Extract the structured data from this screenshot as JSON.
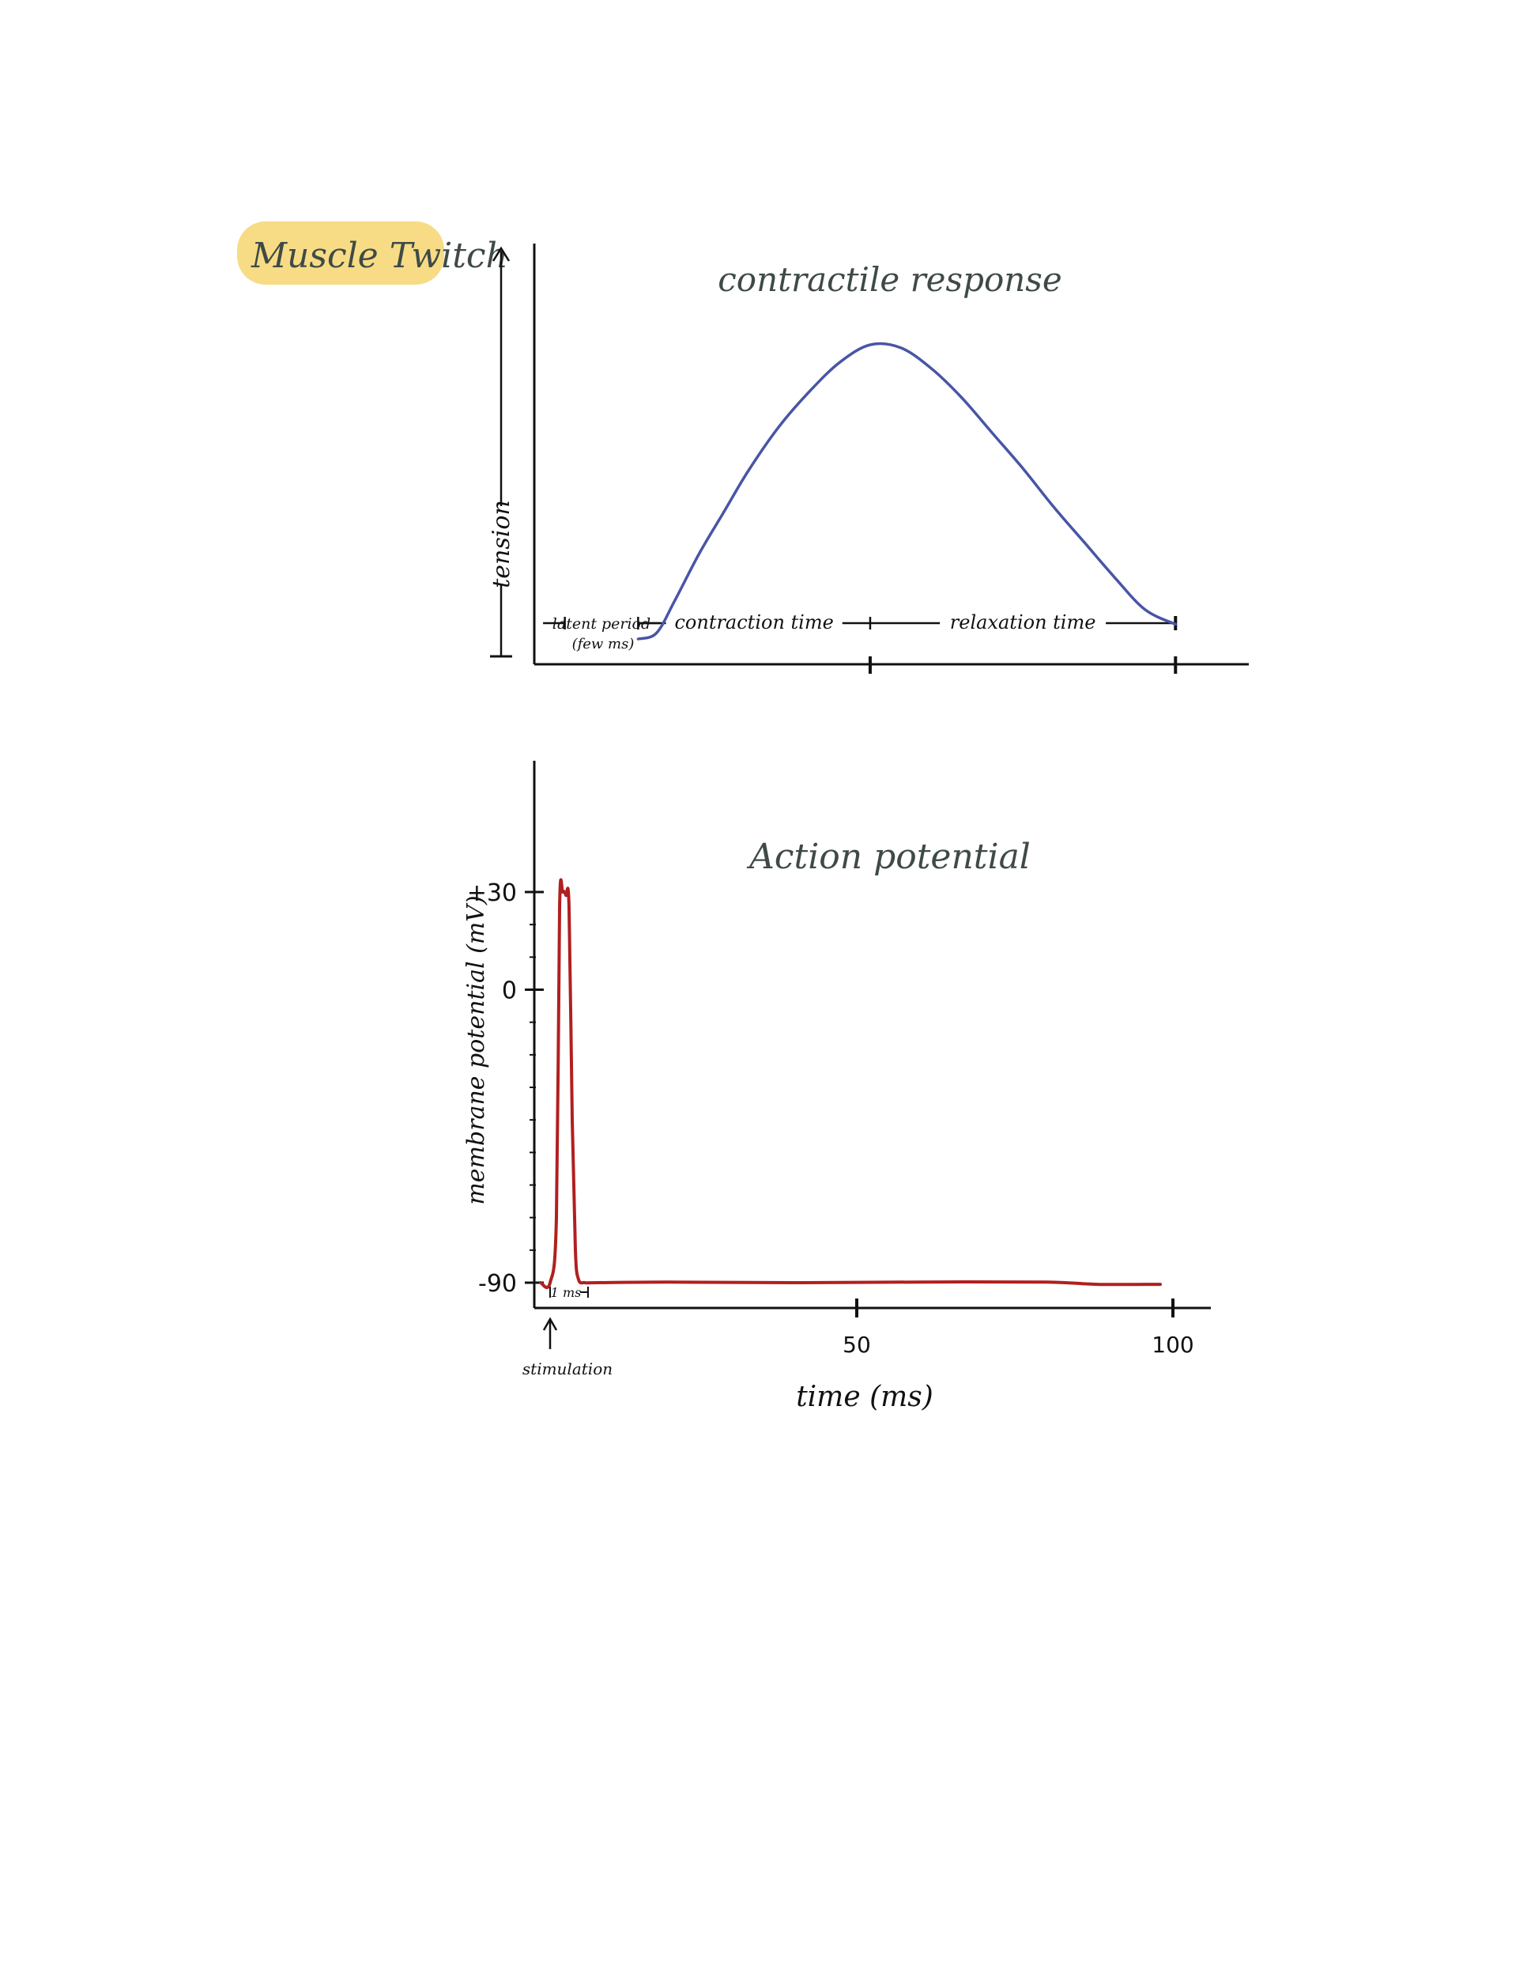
{
  "page_title": "Muscle Twitch",
  "colors": {
    "highlight": "#f7dc85",
    "ink": "#111111",
    "title_ink": "#3f4a47",
    "contraction_curve": "#4855a6",
    "action_potential_curve": "#b0201f"
  },
  "chart_data": [
    {
      "type": "line",
      "title": "contractile response",
      "ylabel": "tension",
      "xlabel": "",
      "grid": false,
      "xlim": [
        -5,
        112
      ],
      "ylim": [
        0,
        1.05
      ],
      "x_ticks": [
        50,
        100
      ],
      "series": [
        {
          "x": [
            0,
            12,
            15,
            18,
            22,
            26,
            30,
            35,
            40,
            45,
            50,
            55,
            60,
            65,
            70,
            75,
            80,
            85,
            90,
            95,
            100
          ],
          "y": [
            0,
            0,
            0.02,
            0.13,
            0.29,
            0.43,
            0.57,
            0.72,
            0.84,
            0.94,
            1.0,
            0.99,
            0.92,
            0.82,
            0.7,
            0.58,
            0.45,
            0.33,
            0.21,
            0.1,
            0.05
          ]
        }
      ],
      "phases": [
        {
          "label": "latent period",
          "sublabel": "(few ms)",
          "start": 0,
          "end": 12
        },
        {
          "label": "contraction time",
          "start": 12,
          "end": 50
        },
        {
          "label": "relaxation time",
          "start": 50,
          "end": 100
        }
      ]
    },
    {
      "type": "line",
      "title": "Action potential",
      "ylabel": "membrane potential (mV)",
      "xlabel": "time (ms)",
      "grid": false,
      "xlim": [
        -1,
        106
      ],
      "ylim": [
        -95,
        55
      ],
      "x_ticks": [
        50,
        100
      ],
      "x_tick_labels": [
        "50",
        "100"
      ],
      "y_ticks": [
        30,
        0,
        -90
      ],
      "y_tick_labels": [
        "+30",
        "0",
        "-90"
      ],
      "series": [
        {
          "x": [
            0,
            1.5,
            2.5,
            3,
            3.5,
            4,
            4.5,
            5,
            5.5,
            6,
            7,
            9,
            20,
            40,
            60,
            80,
            88,
            98
          ],
          "y": [
            -90,
            -90,
            -70,
            25,
            30,
            29,
            25,
            -40,
            -80,
            -89,
            -90,
            -90,
            -89.8,
            -90,
            -89.8,
            -89.8,
            -90.5,
            -90.5
          ]
        }
      ],
      "annotations": [
        {
          "label": "1 ms",
          "x": 4
        },
        {
          "label": "stimulation",
          "x": 1.5
        }
      ]
    }
  ]
}
